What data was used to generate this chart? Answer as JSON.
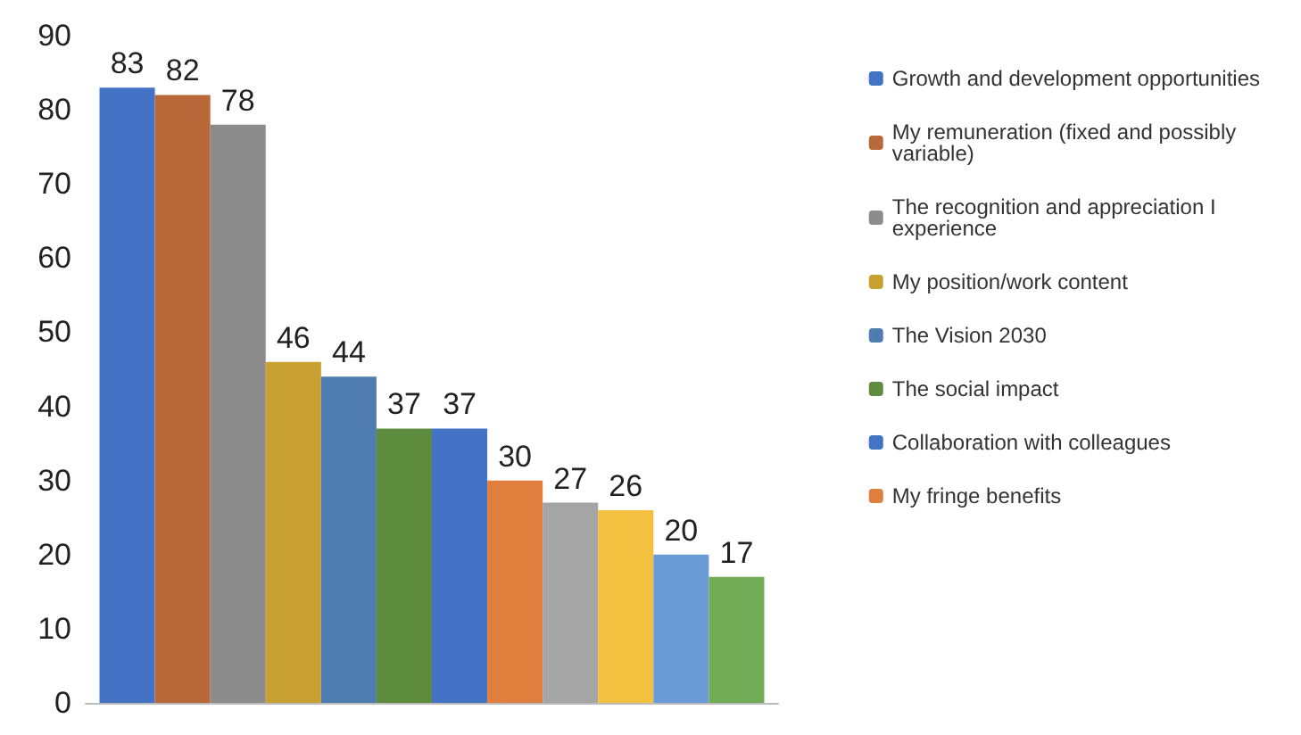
{
  "chart_data": {
    "type": "bar",
    "categories": [
      null
    ],
    "series": [
      {
        "name": "Growth and development opportunities",
        "color": "#4472c4",
        "values": [
          83
        ]
      },
      {
        "name": "My remuneration (fixed and possibly variable)",
        "color": "#b8693a",
        "values": [
          82
        ]
      },
      {
        "name": "The recognition and appreciation I experience",
        "color": "#8c8c8c",
        "values": [
          78
        ]
      },
      {
        "name": "My position/work content",
        "color": "#c9a032",
        "values": [
          46
        ]
      },
      {
        "name": "The Vision 2030",
        "color": "#4f7db0",
        "values": [
          44
        ]
      },
      {
        "name": "The social impact",
        "color": "#5e8c3e",
        "values": [
          37
        ]
      },
      {
        "name": "Collaboration with colleagues",
        "color": "#4472c4",
        "values": [
          37
        ]
      },
      {
        "name": "My fringe benefits",
        "color": "#e07e3e",
        "values": [
          30
        ]
      },
      {
        "color": "#a5a5a5",
        "values": [
          27
        ]
      },
      {
        "color": "#f4c040",
        "values": [
          26
        ]
      },
      {
        "color": "#6a9bd6",
        "values": [
          20
        ]
      },
      {
        "color": "#72ab55",
        "values": [
          17
        ]
      }
    ],
    "ylim": [
      0,
      90
    ],
    "yticks": [
      0,
      10,
      20,
      30,
      40,
      50,
      60,
      70,
      80,
      90
    ],
    "grid": false,
    "legend": "right",
    "data_labels": true
  }
}
